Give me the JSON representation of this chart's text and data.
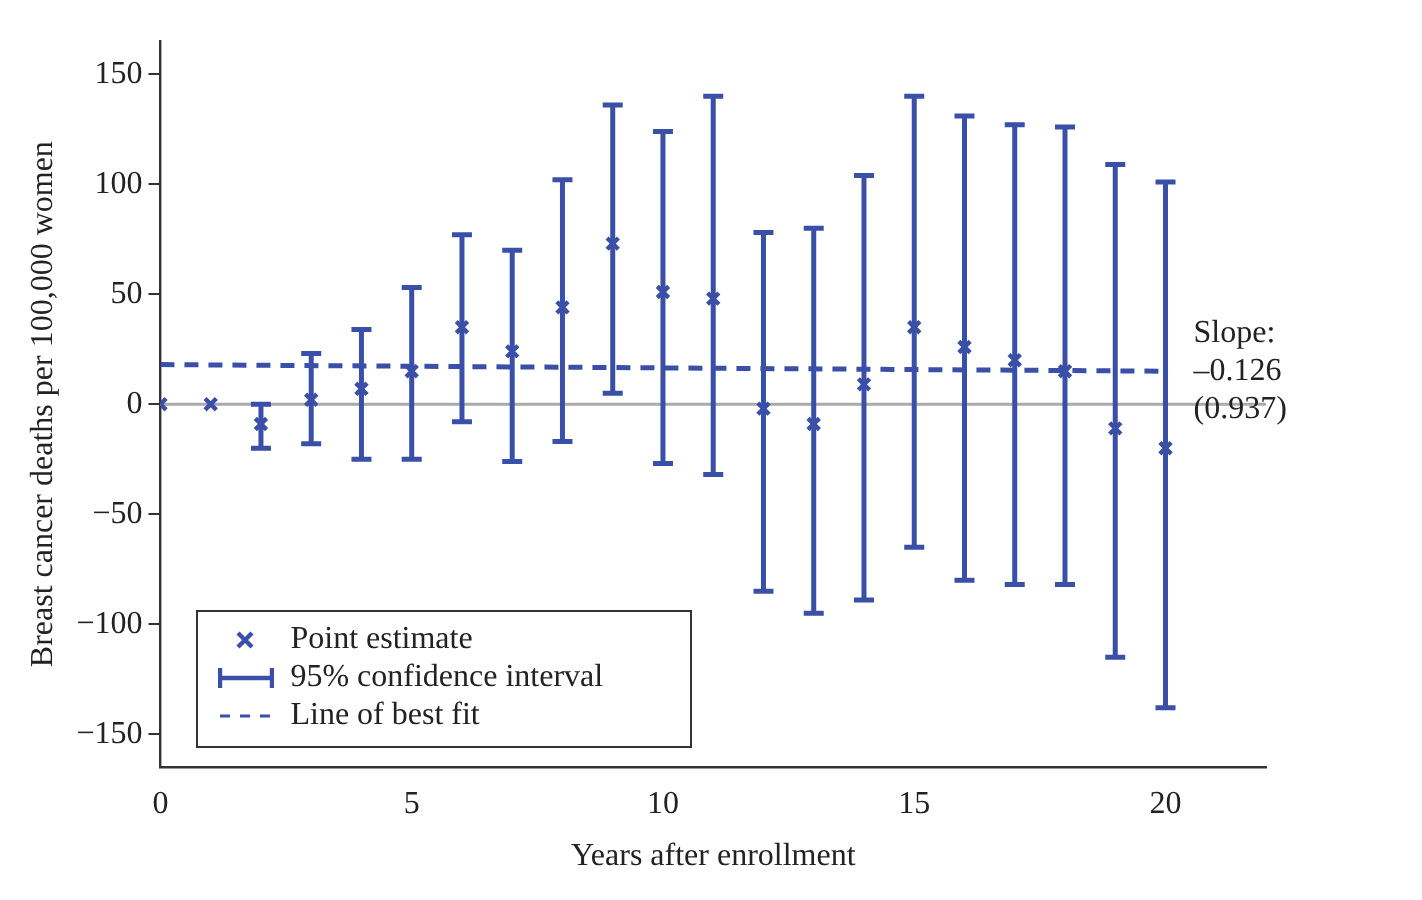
{
  "chart_data": {
    "type": "scatter",
    "xlabel": "Years after enrollment",
    "ylabel": "Breast cancer deaths per 100,000 women",
    "x": [
      0,
      1,
      2,
      3,
      4,
      5,
      6,
      7,
      8,
      9,
      10,
      11,
      12,
      13,
      14,
      15,
      16,
      17,
      18,
      19,
      20
    ],
    "series": [
      {
        "name": "Point estimate",
        "color": "#3a4fa8",
        "marker": "cross",
        "values": [
          0,
          0,
          -9,
          2,
          7,
          15,
          35,
          24,
          44,
          73,
          51,
          48,
          -2,
          -9,
          9,
          35,
          26,
          20,
          15,
          -11,
          -20
        ],
        "errors": [
          null,
          null,
          [
            -20,
            0
          ],
          [
            -18,
            23
          ],
          [
            -25,
            34
          ],
          [
            -25,
            53
          ],
          [
            -8,
            77
          ],
          [
            -26,
            70
          ],
          [
            -17,
            102
          ],
          [
            5,
            136
          ],
          [
            -27,
            124
          ],
          [
            -32,
            140
          ],
          [
            -85,
            78
          ],
          [
            -95,
            80
          ],
          [
            -89,
            104
          ],
          [
            -65,
            140
          ],
          [
            -80,
            131
          ],
          [
            -82,
            127
          ],
          [
            -82,
            126
          ],
          [
            -115,
            109
          ],
          [
            -138,
            101
          ]
        ]
      },
      {
        "name": "Line of best fit",
        "type": "line",
        "color": "#3a4fa8",
        "line_style": "dashed",
        "marker": "none",
        "x": [
          0,
          20
        ],
        "values": [
          18,
          15
        ]
      }
    ],
    "annotations": [
      "95% confidence interval",
      {
        "text": "Slope:\n–0.126\n(0.937)",
        "x": 20,
        "y": 15
      }
    ],
    "ref_lines": [
      {
        "axis": "y",
        "value": 0,
        "color": "#aaaaaa"
      }
    ],
    "xlim": [
      0,
      22
    ],
    "xticks": [
      0,
      5,
      10,
      15,
      20
    ],
    "ylim": [
      -165,
      165
    ],
    "yticks": [
      -150,
      -100,
      -50,
      0,
      50,
      100,
      150
    ],
    "grid": false,
    "legend": "bottom left"
  }
}
